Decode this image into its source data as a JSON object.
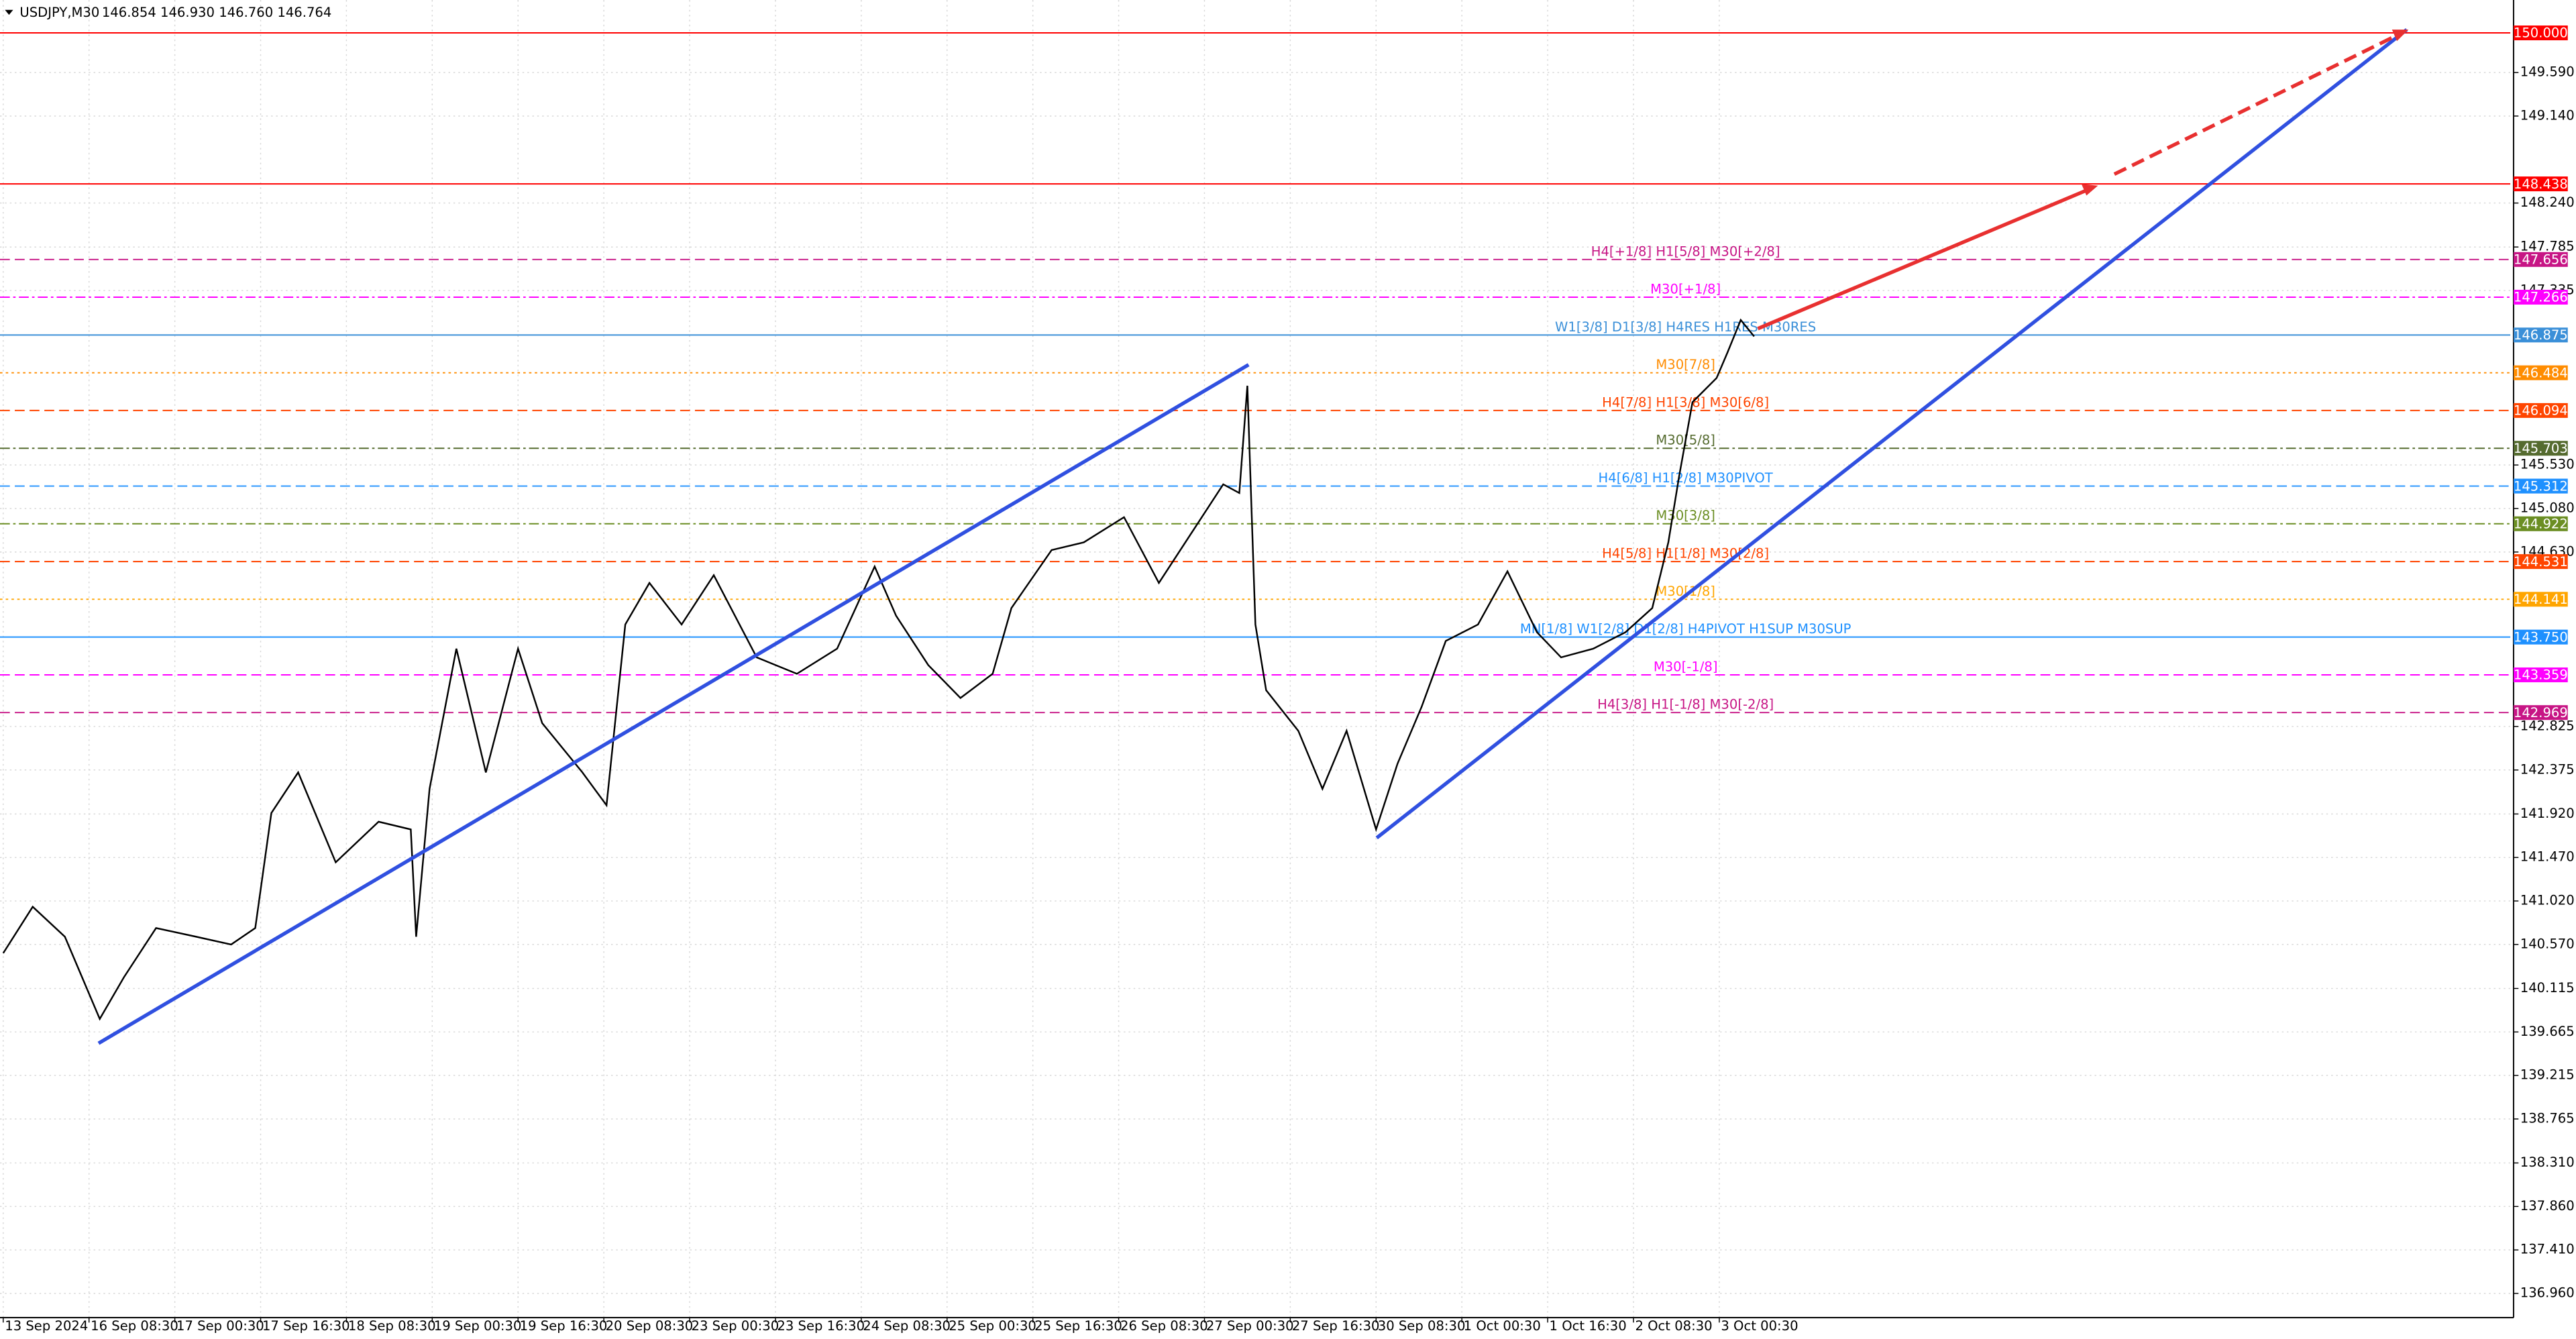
{
  "chart_data": {
    "type": "line",
    "title": "USDJPY,M30",
    "subtitle": "146.854 146.930 146.760 146.764",
    "color": "#000000",
    "x": [
      0,
      11,
      23,
      36,
      45,
      57,
      72,
      85,
      94,
      100,
      110,
      124,
      140,
      152,
      154,
      159,
      169,
      180,
      192,
      201,
      216,
      225,
      232,
      241,
      253,
      265,
      281,
      296,
      311,
      325,
      333,
      345,
      357,
      369,
      376,
      391,
      403,
      418,
      431,
      443,
      455,
      461,
      464,
      467,
      471,
      483,
      492,
      501,
      512,
      520,
      529,
      538,
      550,
      561,
      572,
      581,
      593,
      605,
      615,
      621,
      625,
      630,
      639,
      643,
      648,
      653
    ],
    "values": [
      140.48,
      140.96,
      140.65,
      139.8,
      140.23,
      140.74,
      140.65,
      140.57,
      140.74,
      141.93,
      142.35,
      141.42,
      141.84,
      141.76,
      140.65,
      142.18,
      143.63,
      142.35,
      143.63,
      142.86,
      142.35,
      142.01,
      143.88,
      144.31,
      143.88,
      144.39,
      143.54,
      143.37,
      143.63,
      144.48,
      143.97,
      143.46,
      143.12,
      143.37,
      144.05,
      144.65,
      144.73,
      144.99,
      144.31,
      144.82,
      145.33,
      145.24,
      146.35,
      143.88,
      143.2,
      142.78,
      142.18,
      142.78,
      141.76,
      142.44,
      143.03,
      143.71,
      143.88,
      144.43,
      143.8,
      143.54,
      143.63,
      143.8,
      144.05,
      144.73,
      145.41,
      146.18,
      146.43,
      146.69,
      147.03,
      146.86
    ],
    "xlim": [
      -1.2,
      935
    ],
    "ylim": [
      136.71,
      150.34
    ],
    "grid": true,
    "xticks": [
      {
        "value": 0,
        "label": "13 Sep 2024"
      },
      {
        "value": 32,
        "label": "16 Sep 08:30"
      },
      {
        "value": 64,
        "label": "17 Sep 00:30"
      },
      {
        "value": 96,
        "label": "17 Sep 16:30"
      },
      {
        "value": 128,
        "label": "18 Sep 08:30"
      },
      {
        "value": 160,
        "label": "19 Sep 00:30"
      },
      {
        "value": 192,
        "label": "19 Sep 16:30"
      },
      {
        "value": 224,
        "label": "20 Sep 08:30"
      },
      {
        "value": 256,
        "label": "23 Sep 00:30"
      },
      {
        "value": 288,
        "label": "23 Sep 16:30"
      },
      {
        "value": 320,
        "label": "24 Sep 08:30"
      },
      {
        "value": 352,
        "label": "25 Sep 00:30"
      },
      {
        "value": 384,
        "label": "25 Sep 16:30"
      },
      {
        "value": 416,
        "label": "26 Sep 08:30"
      },
      {
        "value": 448,
        "label": "27 Sep 00:30"
      },
      {
        "value": 480,
        "label": "27 Sep 16:30"
      },
      {
        "value": 512,
        "label": "30 Sep 08:30"
      },
      {
        "value": 544,
        "label": "1 Oct 00:30"
      },
      {
        "value": 576,
        "label": "1 Oct 16:30"
      },
      {
        "value": 608,
        "label": "2 Oct 08:30"
      },
      {
        "value": 640,
        "label": "3 Oct 00:30"
      }
    ],
    "yticks": [
      {
        "value": 149.59,
        "label": "149.590"
      },
      {
        "value": 149.14,
        "label": "149.140"
      },
      {
        "value": 148.24,
        "label": "148.240"
      },
      {
        "value": 147.785,
        "label": "147.785"
      },
      {
        "value": 147.335,
        "label": "147.335"
      },
      {
        "value": 145.53,
        "label": "145.530"
      },
      {
        "value": 145.08,
        "label": "145.080"
      },
      {
        "value": 144.63,
        "label": "144.630"
      },
      {
        "value": 142.825,
        "label": "142.825"
      },
      {
        "value": 142.375,
        "label": "142.375"
      },
      {
        "value": 141.92,
        "label": "141.920"
      },
      {
        "value": 141.47,
        "label": "141.470"
      },
      {
        "value": 141.02,
        "label": "141.020"
      },
      {
        "value": 140.57,
        "label": "140.570"
      },
      {
        "value": 140.115,
        "label": "140.115"
      },
      {
        "value": 139.665,
        "label": "139.665"
      },
      {
        "value": 139.215,
        "label": "139.215"
      },
      {
        "value": 138.765,
        "label": "138.765"
      },
      {
        "value": 138.31,
        "label": "138.310"
      },
      {
        "value": 137.86,
        "label": "137.860"
      },
      {
        "value": 137.41,
        "label": "137.410"
      },
      {
        "value": 136.96,
        "label": "136.960"
      }
    ],
    "levels": [
      {
        "value": 150.0,
        "label": "150.000",
        "color": "#ff0000",
        "style": "solid"
      },
      {
        "value": 148.438,
        "label": "148.438",
        "color": "#ff0000",
        "style": "solid"
      },
      {
        "value": 147.656,
        "label": "147.656",
        "color": "#c71585",
        "style": "dashed",
        "text": "H4[+1/8] H1[5/8] M30[+2/8]"
      },
      {
        "value": 147.266,
        "label": "147.266",
        "color": "#ff00ff",
        "style": "dashdot",
        "text": "M30[+1/8]"
      },
      {
        "value": 146.875,
        "label": "146.875",
        "color": "#3a8fd8",
        "style": "solid",
        "text": "W1[3/8] D1[3/8] H4RES H1RES M30RES"
      },
      {
        "value": 146.484,
        "label": "146.484",
        "color": "#ff8c00",
        "style": "dotted",
        "text": "M30[7/8]"
      },
      {
        "value": 146.094,
        "label": "146.094",
        "color": "#ff4500",
        "style": "dashed",
        "text": "H4[7/8] H1[3/8] M30[6/8]"
      },
      {
        "value": 145.703,
        "label": "145.703",
        "color": "#556b2f",
        "style": "dashdot",
        "text": "M30[5/8]"
      },
      {
        "value": 145.312,
        "label": "145.312",
        "color": "#1e90ff",
        "style": "dashed",
        "text": "H4[6/8] H1[2/8] M30PIVOT"
      },
      {
        "value": 144.922,
        "label": "144.922",
        "color": "#6b8e23",
        "style": "dashdot",
        "text": "M30[3/8]"
      },
      {
        "value": 144.531,
        "label": "144.531",
        "color": "#ff4500",
        "style": "dashed",
        "text": "H4[5/8] H1[1/8] M30[2/8]"
      },
      {
        "value": 144.141,
        "label": "144.141",
        "color": "#ffa500",
        "style": "dotted",
        "text": "M30[1/8]"
      },
      {
        "value": 143.75,
        "label": "143.750",
        "color": "#1e90ff",
        "style": "solid",
        "text": "MN[1/8] W1[2/8] D1[2/8] H4PIVOT H1SUP M30SUP"
      },
      {
        "value": 143.359,
        "label": "143.359",
        "color": "#ff00ff",
        "style": "dashed",
        "text": "M30[-1/8]"
      },
      {
        "value": 142.969,
        "label": "142.969",
        "color": "#c71585",
        "style": "dashed",
        "text": "H4[3/8] H1[-1/8] M30[-2/8]"
      }
    ]
  }
}
